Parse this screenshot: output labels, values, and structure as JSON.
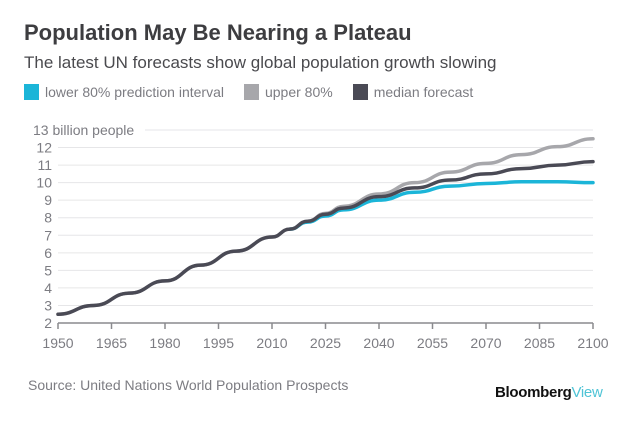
{
  "chart_data": {
    "type": "line",
    "title": "Population May Be Nearing a Plateau",
    "subtitle": "The latest UN forecasts show global population growth slowing",
    "ylabel": "billion people",
    "xlabel": "",
    "ylim": [
      2,
      13
    ],
    "xlim": [
      1950,
      2100
    ],
    "y_ticks": [
      2,
      3,
      4,
      5,
      6,
      7,
      8,
      9,
      10,
      11,
      12,
      13
    ],
    "y_tick_labels": [
      "2",
      "3",
      "4",
      "5",
      "6",
      "7",
      "8",
      "9",
      "10",
      "11",
      "12",
      "13 billion people"
    ],
    "x_ticks": [
      1950,
      1965,
      1980,
      1995,
      2010,
      2025,
      2040,
      2055,
      2070,
      2085,
      2100
    ],
    "x_tick_labels": [
      "1950",
      "1965",
      "1980",
      "1995",
      "2010",
      "2025",
      "2040",
      "2055",
      "2070",
      "2085",
      "2100"
    ],
    "grid": true,
    "legend_position": "top-left",
    "x": [
      1950,
      1960,
      1970,
      1980,
      1990,
      2000,
      2010,
      2015,
      2020,
      2025,
      2030,
      2040,
      2050,
      2060,
      2070,
      2080,
      2090,
      2100
    ],
    "series": [
      {
        "name": "upper 80%",
        "color": "#a7a7ab",
        "values": [
          2.5,
          3.0,
          3.7,
          4.4,
          5.3,
          6.1,
          6.9,
          7.35,
          7.8,
          8.25,
          8.65,
          9.35,
          10.0,
          10.6,
          11.1,
          11.6,
          12.05,
          12.5
        ]
      },
      {
        "name": "median forecast",
        "color": "#4a4a55",
        "values": [
          2.5,
          3.0,
          3.7,
          4.4,
          5.3,
          6.1,
          6.9,
          7.35,
          7.8,
          8.2,
          8.55,
          9.2,
          9.7,
          10.15,
          10.5,
          10.8,
          11.0,
          11.2
        ]
      },
      {
        "name": "lower 80% prediction interval",
        "color": "#1bb5d8",
        "values": [
          null,
          null,
          null,
          null,
          null,
          null,
          null,
          7.35,
          7.75,
          8.1,
          8.45,
          9.0,
          9.45,
          9.8,
          9.95,
          10.05,
          10.05,
          10.0
        ]
      }
    ]
  },
  "legend": [
    {
      "label": "lower 80% prediction interval",
      "color": "#1bb5d8"
    },
    {
      "label": "upper 80%",
      "color": "#a7a7ab"
    },
    {
      "label": "median forecast",
      "color": "#4a4a55"
    }
  ],
  "source": "Source: United Nations World Population Prospects",
  "logo": {
    "main": "Bloomberg",
    "accent": "View"
  }
}
